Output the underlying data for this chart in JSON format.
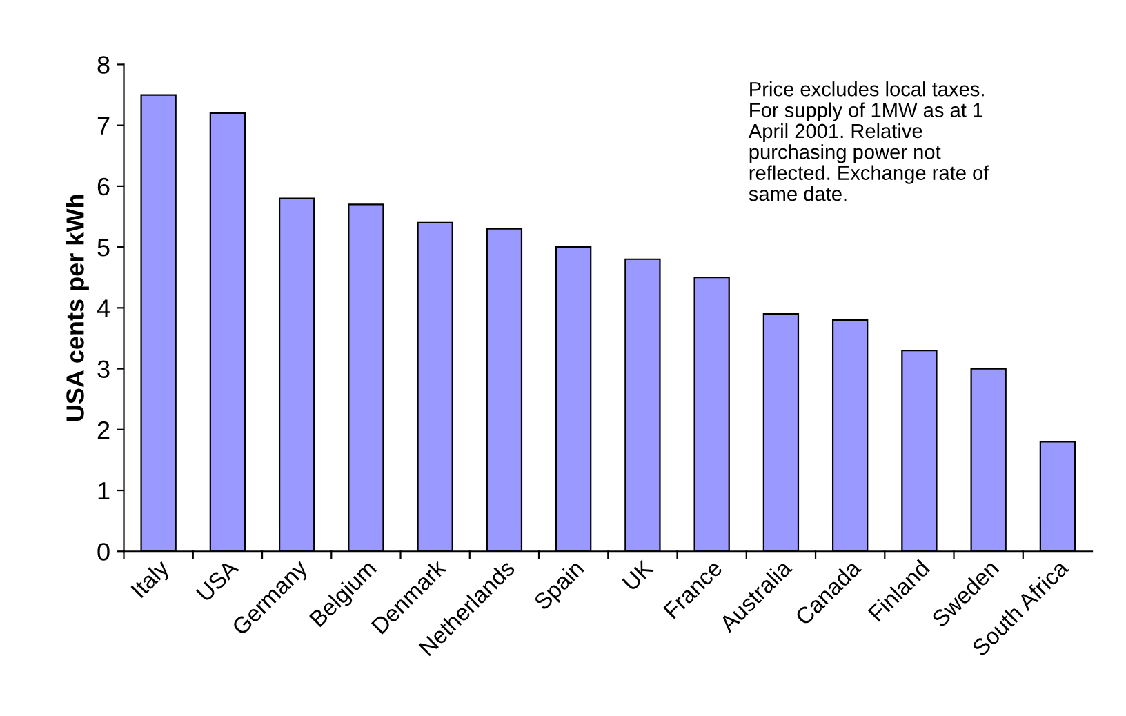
{
  "chart_data": {
    "type": "bar",
    "ylabel": "USA cents per kWh",
    "categories": [
      "Italy",
      "USA",
      "Germany",
      "Belgium",
      "Denmark",
      "Netherlands",
      "Spain",
      "UK",
      "France",
      "Australia",
      "Canada",
      "Finland",
      "Sweden",
      "South Africa"
    ],
    "values": [
      7.5,
      7.2,
      5.8,
      5.7,
      5.4,
      5.3,
      5.0,
      4.8,
      4.5,
      3.9,
      3.8,
      3.3,
      3.0,
      1.8
    ],
    "color": "#9999ff",
    "ylim": [
      0,
      8
    ],
    "yticks": [
      0,
      1,
      2,
      3,
      4,
      5,
      6,
      7,
      8
    ],
    "grid": false,
    "annotations": [
      "Price excludes local taxes.\nFor supply of 1MW as at 1\nApril 2001. Relative\npurchasing power not\nreflected. Exchange rate of\nsame date."
    ]
  }
}
